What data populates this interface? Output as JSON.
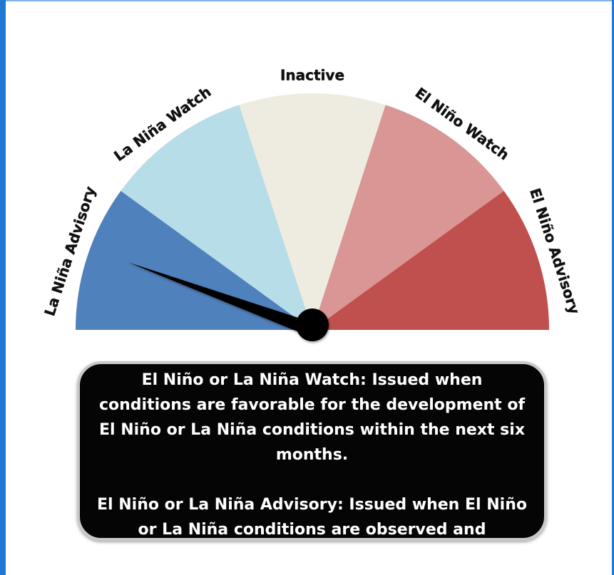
{
  "gauge": {
    "segments": [
      {
        "label": "La Niña Advisory",
        "color": "#4f81bd"
      },
      {
        "label": "La Niña Watch",
        "color": "#b7dde8"
      },
      {
        "label": "Inactive",
        "color": "#eeece1"
      },
      {
        "label": "El Niño Watch",
        "color": "#d99694"
      },
      {
        "label": "El Niño Advisory",
        "color": "#c0504d"
      }
    ],
    "needle_segment": "La Niña Advisory",
    "needle_color": "#000000"
  },
  "info": {
    "watch_text": "El Niño or La Niña Watch: Issued when conditions are favorable for the development of El Niño or La Niña conditions within the next six months.",
    "advisory_text": "El Niño or La Niña Advisory: Issued when El Niño or La Niña conditions are observed and expected to continue."
  }
}
